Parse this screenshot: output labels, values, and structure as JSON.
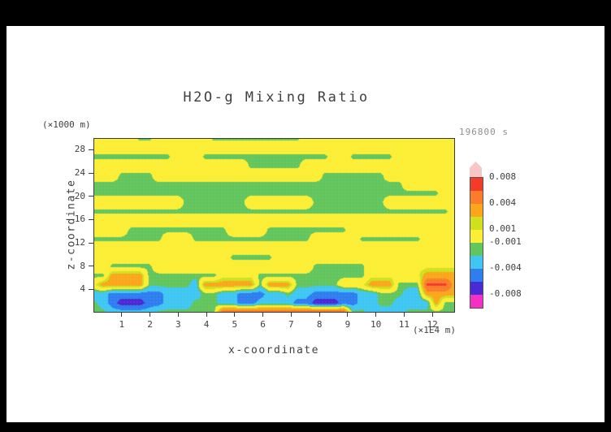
{
  "window": {
    "frame_color": "#000000",
    "canvas_color": "#ffffff"
  },
  "header": {
    "title": "H2O-g Mixing Ratio",
    "timestamp": "196800 s"
  },
  "axes": {
    "x_label": "x-coordinate",
    "x_unit": "(×1E4 m)",
    "z_label": "z-coordinate",
    "z_unit": "(×1000 m)"
  },
  "colorbar": {
    "labels": [
      {
        "text": "0.008",
        "boundary": 0
      },
      {
        "text": "0.004",
        "boundary": 2
      },
      {
        "text": "0.001",
        "boundary": 4
      },
      {
        "text": "-0.001",
        "boundary": 5
      },
      {
        "text": "-0.004",
        "boundary": 7
      },
      {
        "text": "-0.008",
        "boundary": 9
      }
    ]
  },
  "chart_data": {
    "type": "heatmap",
    "title": "H2O-g Mixing Ratio",
    "xlabel": "x-coordinate (×1E4 m)",
    "ylabel": "z-coordinate (×1000 m)",
    "time_label": "196800 s",
    "x_range": [
      0,
      12.8
    ],
    "z_range": [
      0,
      30
    ],
    "x_ticks": [
      1,
      2,
      3,
      4,
      5,
      6,
      7,
      8,
      9,
      10,
      11,
      12
    ],
    "z_ticks": [
      4,
      8,
      12,
      16,
      20,
      24,
      28
    ],
    "value_scale": 0.001,
    "levels": [
      -8,
      -6,
      -4,
      -2,
      -1,
      1,
      2,
      4,
      6,
      8
    ],
    "band_colors": [
      "#f531c3",
      "#4a2ad2",
      "#2f7ef0",
      "#3fc6f2",
      "#62c55d",
      "#fbee34",
      "#cfe01f",
      "#fba61b",
      "#fb7d2b",
      "#f43b2a",
      "#f7c6c6"
    ],
    "grid_rows_top_to_bottom": [
      [
        0.5,
        0.5,
        0.5,
        0.5,
        0.5,
        -1.5,
        -1.5,
        0.5,
        0.5,
        0.5,
        0.5,
        0.5,
        0.5,
        -1.5,
        -1.5,
        -1.5,
        -1.5,
        -1.5,
        -1.5,
        -1.5,
        -1.5,
        -1.5,
        -1.5,
        0.5,
        0.5,
        0.5,
        0.5,
        0.5,
        0.5,
        0.5,
        0.5,
        0.5,
        0.5,
        0.5,
        0.5,
        0.5,
        0.5,
        0.5,
        0.5,
        0.5
      ],
      [
        0.5,
        0.5,
        0.5,
        0.5,
        0.5,
        0.5,
        0.5,
        0.5,
        0.5,
        0.5,
        0.5,
        0.5,
        0.5,
        0.5,
        0.5,
        0.5,
        0.5,
        0.5,
        0.5,
        0.5,
        0.5,
        0.5,
        0.5,
        0.5,
        0.5,
        0.5,
        0.5,
        0.5,
        0.5,
        0.5,
        0.5,
        0.5,
        0.5,
        0.5,
        0.5,
        0.5,
        0.5,
        0.5,
        0.5,
        0.5
      ],
      [
        -1.5,
        -1.5,
        -1.5,
        -1.5,
        -1.5,
        -1.5,
        -1.5,
        -1.5,
        -1.5,
        0.5,
        0.5,
        0.5,
        -1.5,
        -1.5,
        -1.5,
        -1.5,
        -1.5,
        -1.5,
        -1.5,
        -1.5,
        -1.5,
        -1.5,
        -1.5,
        -1.5,
        -1.5,
        -1.5,
        0.5,
        0.5,
        -1.5,
        -1.5,
        -1.5,
        -1.5,
        -1.5,
        0.5,
        0.5,
        0.5,
        0.5,
        0.5,
        0.5,
        0.5
      ],
      [
        0.5,
        0.5,
        0.5,
        0.5,
        0.5,
        0.5,
        0.5,
        0.5,
        0.5,
        0.5,
        0.5,
        0.5,
        0.5,
        0.5,
        0.5,
        0.5,
        0.5,
        -1.5,
        -1.5,
        -1.5,
        -1.5,
        -1.5,
        -1.5,
        0.5,
        0.5,
        0.5,
        0.5,
        0.5,
        0.5,
        0.5,
        0.5,
        0.5,
        0.5,
        0.5,
        0.5,
        0.5,
        0.5,
        0.5,
        0.5,
        0.5
      ],
      [
        0.5,
        0.5,
        0.5,
        -1.5,
        -1.5,
        -1.5,
        -1.5,
        0.5,
        0.5,
        0.5,
        0.5,
        0.5,
        0.5,
        0.5,
        0.5,
        0.5,
        0.5,
        0.5,
        0.5,
        0.5,
        0.5,
        0.5,
        0.5,
        0.5,
        0.5,
        -1.5,
        -1.5,
        -1.5,
        -1.5,
        -1.5,
        -1.5,
        -1.5,
        0.5,
        0.5,
        0.5,
        0.5,
        0.5,
        0.5,
        0.5,
        0.5
      ],
      [
        -1.5,
        -1.5,
        -1.5,
        -1.5,
        -1.5,
        -1.5,
        -1.5,
        -1.5,
        -1.5,
        -1.5,
        -1.5,
        -1.5,
        -1.5,
        -1.5,
        -1.5,
        -1.5,
        -1.5,
        -1.5,
        -1.5,
        -1.5,
        -1.5,
        -1.5,
        -1.5,
        -1.5,
        -1.5,
        -1.5,
        -1.5,
        -1.5,
        -1.5,
        -1.5,
        -1.5,
        -1.5,
        -1.5,
        -1.5,
        0.5,
        0.5,
        0.5,
        0.5,
        0.5,
        0.5
      ],
      [
        -1.5,
        -1.5,
        -1.5,
        -1.5,
        -1.5,
        -1.5,
        -1.5,
        -1.5,
        -1.5,
        -1.5,
        -1.5,
        -1.5,
        -1.5,
        -1.5,
        -1.5,
        -1.5,
        -1.5,
        -1.5,
        -1.5,
        -1.5,
        -1.5,
        -1.5,
        -1.5,
        -1.5,
        -1.5,
        -1.5,
        -1.5,
        -1.5,
        -1.5,
        -1.5,
        -1.5,
        -1.5,
        -1.5,
        -1.5,
        -1.5,
        -1.5,
        -1.5,
        -1.5,
        0.5,
        0.5
      ],
      [
        0.5,
        0.5,
        0.5,
        0.5,
        0.5,
        0.5,
        0.5,
        0.5,
        0.5,
        0.5,
        -1.5,
        -1.5,
        -1.5,
        -1.5,
        -1.5,
        -1.5,
        -1.5,
        0.5,
        0.5,
        0.5,
        0.5,
        0.5,
        0.5,
        0.5,
        -1.5,
        -1.5,
        -1.5,
        -1.5,
        -1.5,
        -1.5,
        -1.5,
        -1.5,
        0.5,
        0.5,
        0.5,
        0.5,
        0.5,
        0.5,
        0.5,
        0.5
      ],
      [
        -1.5,
        -1.5,
        -1.5,
        -1.5,
        -1.5,
        -1.5,
        -1.5,
        -1.5,
        -1.5,
        -1.5,
        -1.5,
        -1.5,
        -1.5,
        -1.5,
        -1.5,
        -1.5,
        -1.5,
        -1.5,
        -1.5,
        -1.5,
        -1.5,
        -1.5,
        -1.5,
        -1.5,
        -1.5,
        -1.5,
        -1.5,
        -1.5,
        -1.5,
        -1.5,
        -1.5,
        -1.5,
        -1.5,
        -1.5,
        -1.5,
        -1.5,
        -1.5,
        -1.5,
        -1.5,
        0.5
      ],
      [
        0.5,
        0.5,
        0.5,
        0.5,
        0.5,
        0.5,
        0.5,
        0.5,
        0.5,
        0.5,
        0.5,
        0.5,
        0.5,
        0.5,
        0.5,
        0.5,
        0.5,
        0.5,
        0.5,
        0.5,
        0.5,
        0.5,
        0.5,
        0.5,
        0.5,
        0.5,
        0.5,
        0.5,
        0.5,
        0.5,
        0.5,
        0.5,
        0.5,
        0.5,
        0.5,
        0.5,
        0.5,
        0.5,
        0.5,
        0.5
      ],
      [
        0.5,
        0.5,
        0.5,
        0.5,
        -1.5,
        -1.5,
        -1.5,
        -1.5,
        -1.5,
        -1.5,
        -1.5,
        -1.5,
        -1.5,
        -1.5,
        -1.5,
        0.5,
        0.5,
        0.5,
        0.5,
        -1.5,
        -1.5,
        -1.5,
        -1.5,
        -1.5,
        -1.5,
        -1.5,
        -1.5,
        -1.5,
        0.5,
        0.5,
        0.5,
        0.5,
        0.5,
        0.5,
        0.5,
        0.5,
        0.5,
        0.5,
        0.5,
        0.5
      ],
      [
        -1.5,
        -1.5,
        -1.5,
        -1.5,
        -1.5,
        -1.5,
        -1.5,
        -1.5,
        0.5,
        0.5,
        0.5,
        -1.5,
        -1.5,
        -1.5,
        -1.5,
        -1.5,
        -1.5,
        -1.5,
        -1.5,
        -1.5,
        -1.5,
        -1.5,
        -1.5,
        -1.5,
        0.5,
        0.5,
        0.5,
        0.5,
        0.5,
        -1.5,
        -1.5,
        -1.5,
        -1.5,
        -1.5,
        -1.5,
        -1.5,
        0.5,
        0.5,
        0.5,
        0.5
      ],
      [
        0.5,
        0.5,
        0.5,
        0.5,
        0.5,
        0.5,
        0.5,
        0.5,
        0.5,
        0.5,
        0.5,
        0.5,
        0.5,
        0.5,
        0.5,
        0.5,
        0.5,
        0.5,
        0.5,
        0.5,
        0.5,
        0.5,
        0.5,
        0.5,
        0.5,
        0.5,
        0.5,
        0.5,
        0.5,
        0.5,
        0.5,
        0.5,
        0.5,
        0.5,
        0.5,
        0.5,
        0.5,
        0.5,
        0.5,
        0.5
      ],
      [
        0.5,
        0.5,
        0.5,
        0.5,
        0.5,
        0.5,
        0.5,
        0.5,
        0.5,
        0.5,
        0.5,
        0.5,
        0.5,
        0.5,
        0.5,
        -1.5,
        -1.5,
        -1.5,
        -1.5,
        -1.5,
        0.5,
        0.5,
        0.5,
        0.5,
        0.5,
        0.5,
        0.5,
        0.5,
        0.5,
        0.5,
        0.5,
        0.5,
        0.5,
        0.5,
        0.5,
        0.5,
        0.5,
        0.5,
        0.5,
        0.5
      ],
      [
        0.5,
        0.5,
        -1.5,
        -1.5,
        -1.5,
        -1.5,
        -1.5,
        0.5,
        0.5,
        0.5,
        0.5,
        0.5,
        0.5,
        0.5,
        0.5,
        0.5,
        0.5,
        0.5,
        0.5,
        0.5,
        0.5,
        0.5,
        0.5,
        0.5,
        -1.5,
        -1.5,
        -1.5,
        -1.5,
        -1.5,
        -1.5,
        0.5,
        0.5,
        0.5,
        0.5,
        0.5,
        0.5,
        0.5,
        0.5,
        0.5,
        0.5
      ],
      [
        -1.5,
        -1.5,
        3,
        3,
        3,
        3,
        -1.5,
        -1.5,
        -1.5,
        -1.5,
        -1.5,
        -1.5,
        -1.5,
        -1.5,
        0.5,
        0.5,
        0.5,
        0.5,
        -1.5,
        -1.5,
        -1.5,
        -1.5,
        -1.5,
        -1.5,
        -1.5,
        -1.5,
        -1.5,
        -1.5,
        -1.5,
        -1.5,
        0.5,
        0.5,
        0.5,
        0.5,
        0.5,
        0.5,
        3,
        3,
        3,
        3
      ],
      [
        0.5,
        3,
        3,
        3,
        3,
        3,
        -1.5,
        -1.5,
        -1.5,
        -1.5,
        -1.5,
        -3,
        3,
        3,
        3,
        3,
        3,
        3,
        -1.5,
        3,
        3,
        3,
        -1.5,
        -1.5,
        -1.5,
        -1.5,
        -1.5,
        0.5,
        0.5,
        0.5,
        3,
        3,
        3,
        -1.5,
        -1.5,
        -1.5,
        6.5,
        6.5,
        6.5,
        3
      ],
      [
        -3,
        -3,
        -5,
        -5,
        -5,
        -5,
        -5,
        -5,
        -3,
        -3,
        -3,
        -3,
        -1.5,
        -1.5,
        -3,
        -3,
        -5,
        -5,
        -5,
        -3,
        -3,
        -1.5,
        -3,
        -3,
        -5,
        -5,
        -5,
        -5,
        -5,
        -3,
        -3,
        -1.5,
        -1.5,
        -1.5,
        -3,
        -3,
        3,
        3,
        3,
        3
      ],
      [
        -1.5,
        -3,
        -5,
        -7,
        -7,
        -7,
        -5,
        -5,
        -3,
        -3,
        -3,
        -1.5,
        -1.5,
        -1.5,
        -3,
        -3,
        -5,
        -5,
        -3,
        -3,
        -3,
        -3,
        -5,
        -5,
        -7,
        -7,
        -7,
        -5,
        -5,
        -3,
        -3,
        -1.5,
        -1.5,
        -3,
        -3,
        -3,
        -3,
        3,
        -1.5,
        -1.5
      ],
      [
        -1.5,
        -1.5,
        -3,
        -3,
        -3,
        -3,
        -3,
        -1.5,
        -1.5,
        -1.5,
        -1.5,
        -1.5,
        -1.5,
        -1.5,
        6.5,
        6.5,
        6.5,
        6.5,
        6.5,
        6.5,
        6.5,
        6.5,
        6.5,
        6.5,
        6.5,
        6.5,
        6.5,
        6.5,
        -1.5,
        -1.5,
        -3,
        -3,
        -3,
        -3,
        -1.5,
        -1.5,
        -1.5,
        -1.5,
        -1.5,
        -1.5
      ]
    ]
  }
}
